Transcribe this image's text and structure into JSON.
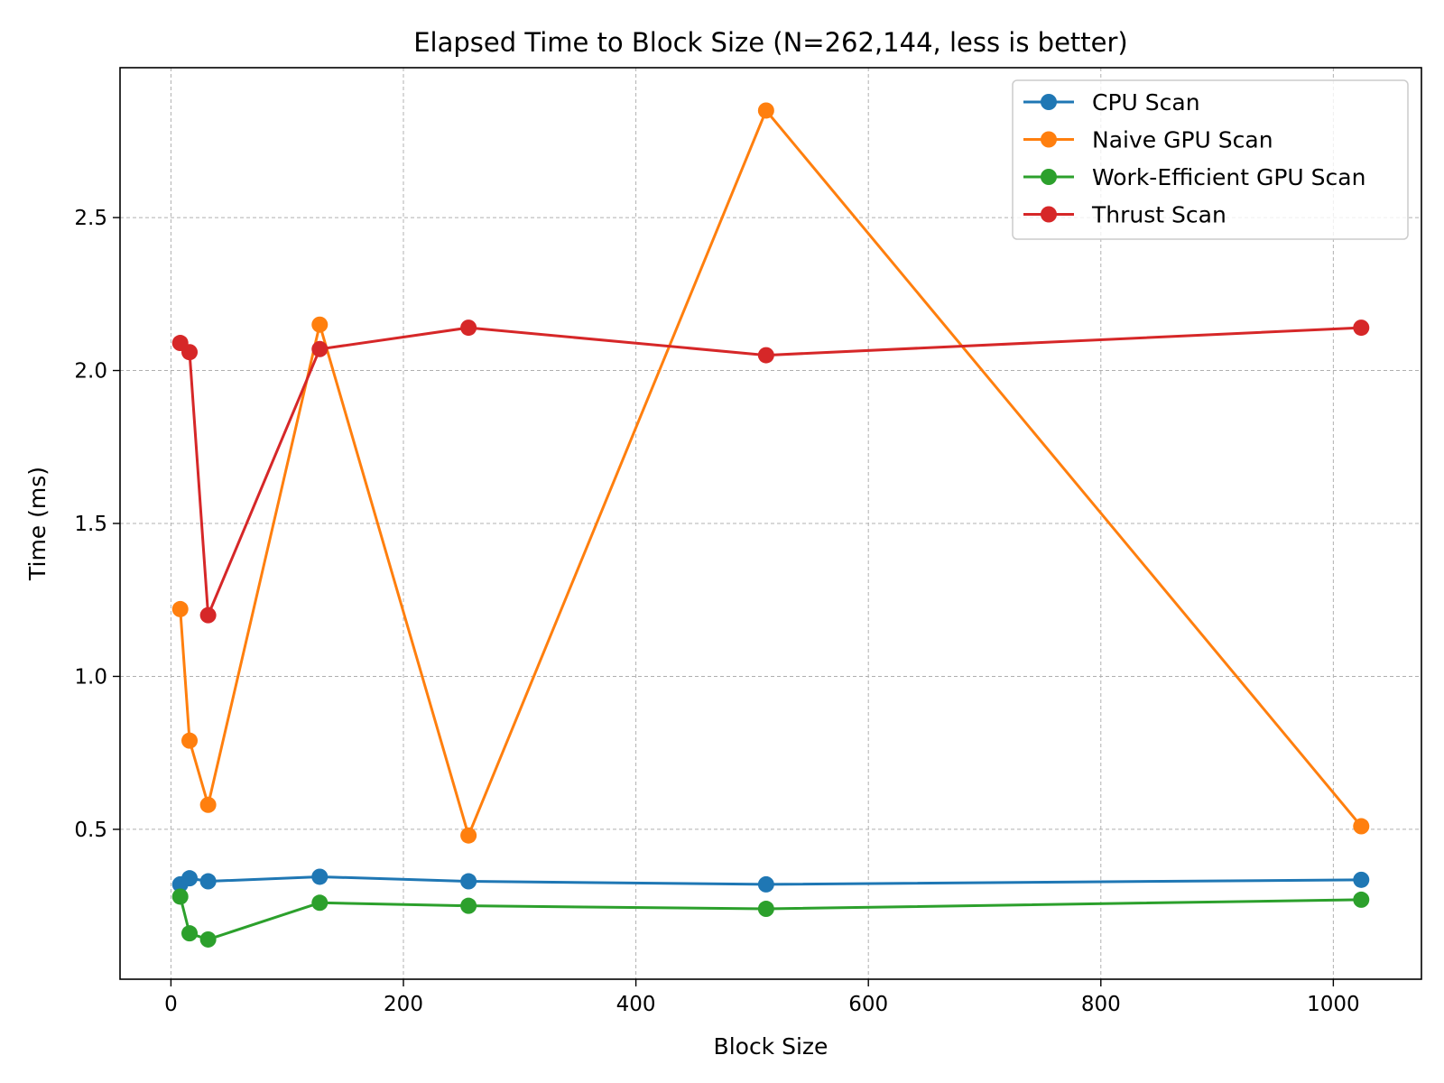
{
  "chart_data": {
    "type": "line",
    "title": "Elapsed Time to Block Size (N=262,144, less is better)",
    "xlabel": "Block Size",
    "ylabel": "Time (ms)",
    "x": [
      8,
      16,
      32,
      128,
      256,
      512,
      1024
    ],
    "xlim": [
      -43.8,
      1075.8
    ],
    "ylim": [
      0.01,
      2.99
    ],
    "xticks": [
      0,
      200,
      400,
      600,
      800,
      1000
    ],
    "yticks": [
      0.5,
      1.0,
      1.5,
      2.0,
      2.5
    ],
    "xtick_labels": [
      "0",
      "200",
      "400",
      "600",
      "800",
      "1000"
    ],
    "ytick_labels": [
      "0.5",
      "1.0",
      "1.5",
      "2.0",
      "2.5"
    ],
    "grid": true,
    "legend_position": "top-right",
    "series": [
      {
        "name": "CPU Scan",
        "color": "#1f77b4",
        "values": [
          0.32,
          0.34,
          0.33,
          0.345,
          0.33,
          0.32,
          0.335
        ]
      },
      {
        "name": "Naive GPU Scan",
        "color": "#ff7f0e",
        "values": [
          1.22,
          0.79,
          0.58,
          2.15,
          0.48,
          2.85,
          0.51
        ]
      },
      {
        "name": "Work-Efficient GPU Scan",
        "color": "#2ca02c",
        "values": [
          0.28,
          0.16,
          0.14,
          0.26,
          0.25,
          0.24,
          0.27
        ]
      },
      {
        "name": "Thrust Scan",
        "color": "#d62728",
        "values": [
          2.09,
          2.06,
          1.2,
          2.07,
          2.14,
          2.05,
          2.14
        ]
      }
    ]
  }
}
